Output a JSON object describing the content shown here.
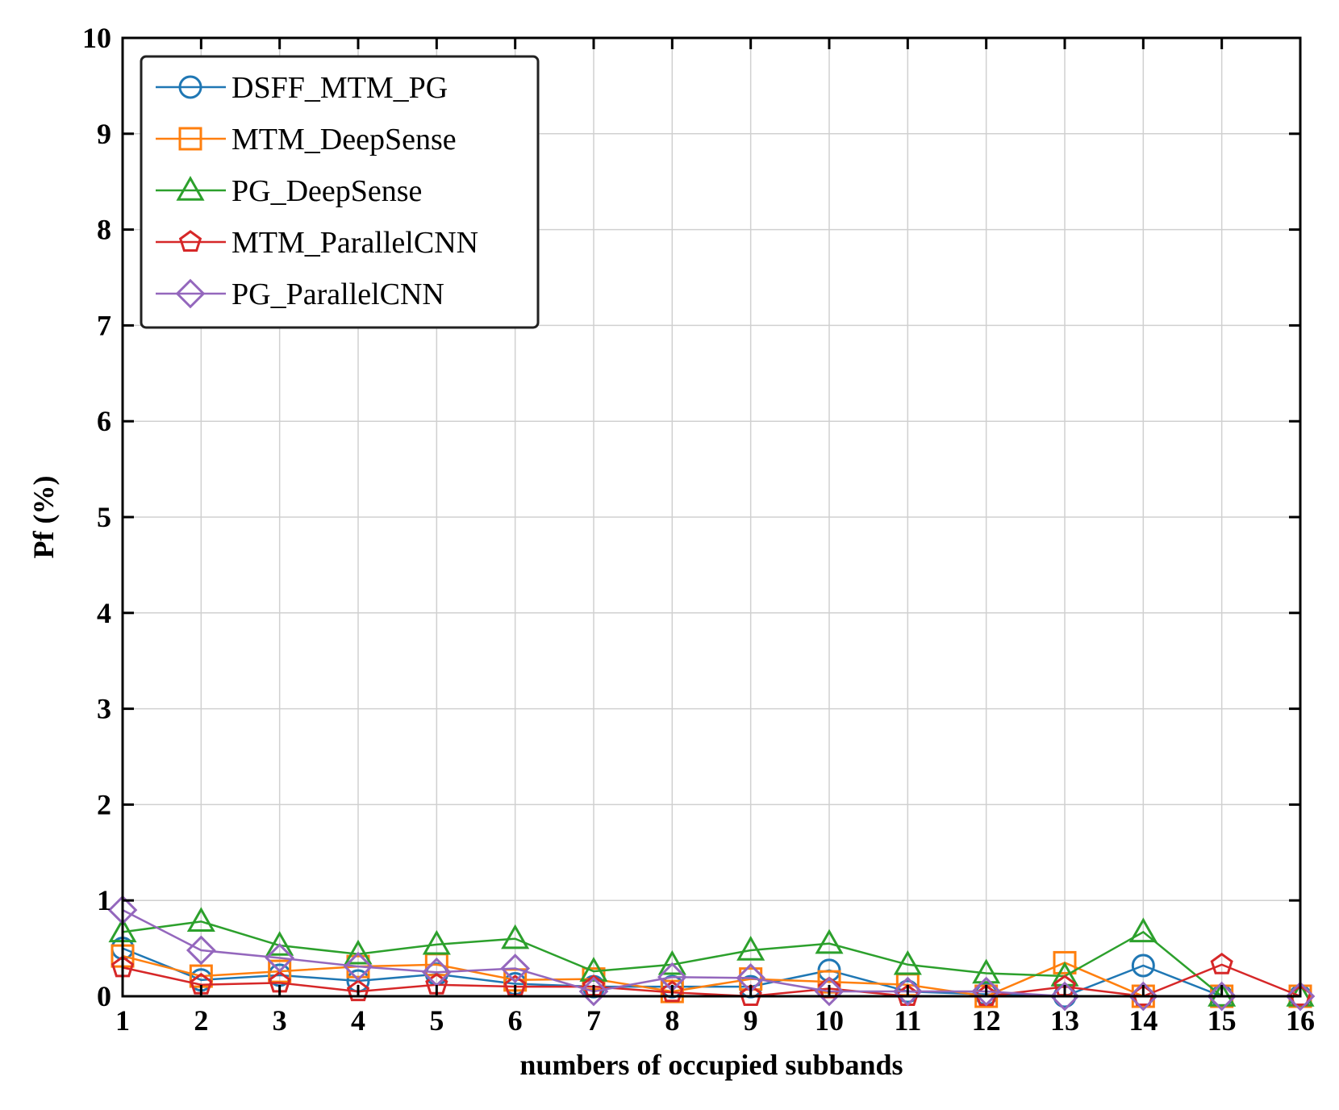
{
  "chart_data": {
    "type": "line",
    "title": "",
    "xlabel": "numbers of occupied subbands",
    "ylabel": "Pf  (%)",
    "xlim": [
      1,
      16
    ],
    "ylim": [
      0,
      10
    ],
    "x": [
      1,
      2,
      3,
      4,
      5,
      6,
      7,
      8,
      9,
      10,
      11,
      12,
      13,
      14,
      15,
      16
    ],
    "xticks": [
      1,
      2,
      3,
      4,
      5,
      6,
      7,
      8,
      9,
      10,
      11,
      12,
      13,
      14,
      15,
      16
    ],
    "yticks": [
      0,
      1,
      2,
      3,
      4,
      5,
      6,
      7,
      8,
      9,
      10
    ],
    "grid": true,
    "legend_position": "top-left",
    "series": [
      {
        "name": "DSFF_MTM_PG",
        "color": "#1f77b4",
        "marker": "circle",
        "values": [
          0.5,
          0.17,
          0.22,
          0.16,
          0.23,
          0.13,
          0.1,
          0.1,
          0.1,
          0.27,
          0.05,
          0.02,
          0.0,
          0.32,
          0.0,
          0.0
        ]
      },
      {
        "name": "MTM_DeepSense",
        "color": "#ff7f0e",
        "marker": "square",
        "values": [
          0.42,
          0.21,
          0.26,
          0.31,
          0.33,
          0.17,
          0.18,
          0.05,
          0.18,
          0.15,
          0.12,
          0.0,
          0.35,
          0.0,
          0.0,
          0.0
        ]
      },
      {
        "name": "PG_DeepSense",
        "color": "#2ca02c",
        "marker": "triangle",
        "values": [
          0.67,
          0.78,
          0.53,
          0.44,
          0.54,
          0.6,
          0.26,
          0.33,
          0.48,
          0.55,
          0.33,
          0.24,
          0.21,
          0.67,
          0.0,
          0.0
        ]
      },
      {
        "name": "MTM_ParallelCNN",
        "color": "#d62728",
        "marker": "pentagon",
        "values": [
          0.3,
          0.12,
          0.14,
          0.05,
          0.12,
          0.1,
          0.1,
          0.04,
          0.0,
          0.08,
          0.0,
          0.0,
          0.1,
          0.0,
          0.33,
          0.0
        ]
      },
      {
        "name": "PG_ParallelCNN",
        "color": "#9467bd",
        "marker": "diamond",
        "values": [
          0.9,
          0.48,
          0.4,
          0.31,
          0.25,
          0.29,
          0.05,
          0.2,
          0.19,
          0.05,
          0.05,
          0.05,
          0.0,
          0.0,
          0.0,
          0.0
        ]
      }
    ]
  }
}
